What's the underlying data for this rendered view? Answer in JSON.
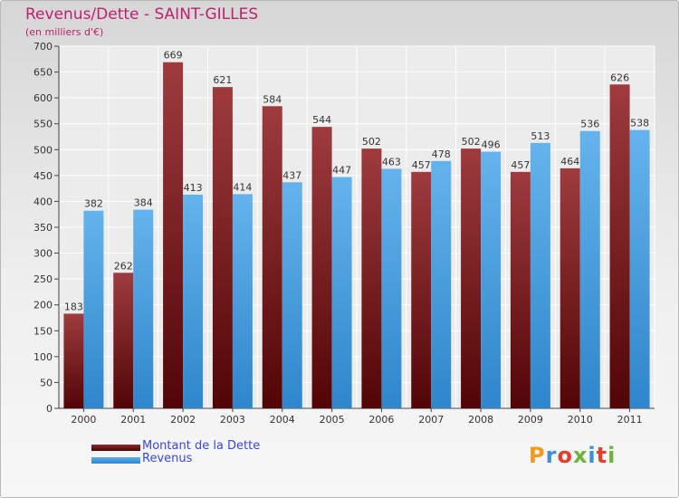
{
  "header": {
    "title": "Revenus/Dette - SAINT-GILLES",
    "subtitle": "(en milliers d'€)"
  },
  "legend": [
    {
      "label": "Montant de la Dette",
      "color": "#6b0f12"
    },
    {
      "label": "Revenus",
      "color": "#3d9ee0"
    }
  ],
  "logo": {
    "letters": [
      "P",
      "r",
      "o",
      "x",
      "i",
      "t",
      "i"
    ],
    "colors": [
      "#f29a1e",
      "#3d8fd6",
      "#e63e2a",
      "#6cb33f",
      "#3d8fd6",
      "#e63e2a",
      "#6cb33f"
    ]
  },
  "chart_data": {
    "type": "bar",
    "title": "Revenus/Dette - SAINT-GILLES",
    "subtitle": "(en milliers d'€)",
    "categories": [
      "2000",
      "2001",
      "2002",
      "2003",
      "2004",
      "2005",
      "2006",
      "2007",
      "2008",
      "2009",
      "2010",
      "2011"
    ],
    "series": [
      {
        "name": "Montant de la Dette",
        "color": "#6b0f12",
        "values": [
          183,
          262,
          669,
          621,
          584,
          544,
          502,
          457,
          502,
          457,
          464,
          626
        ]
      },
      {
        "name": "Revenus",
        "color": "#3d9ee0",
        "values": [
          382,
          384,
          413,
          414,
          437,
          447,
          463,
          478,
          496,
          513,
          536,
          538
        ]
      }
    ],
    "ylim": [
      0,
      700
    ],
    "yticks": [
      0,
      50,
      100,
      150,
      200,
      250,
      300,
      350,
      400,
      450,
      500,
      550,
      600,
      650,
      700
    ],
    "grid": true,
    "legend_position": "bottom-left"
  }
}
